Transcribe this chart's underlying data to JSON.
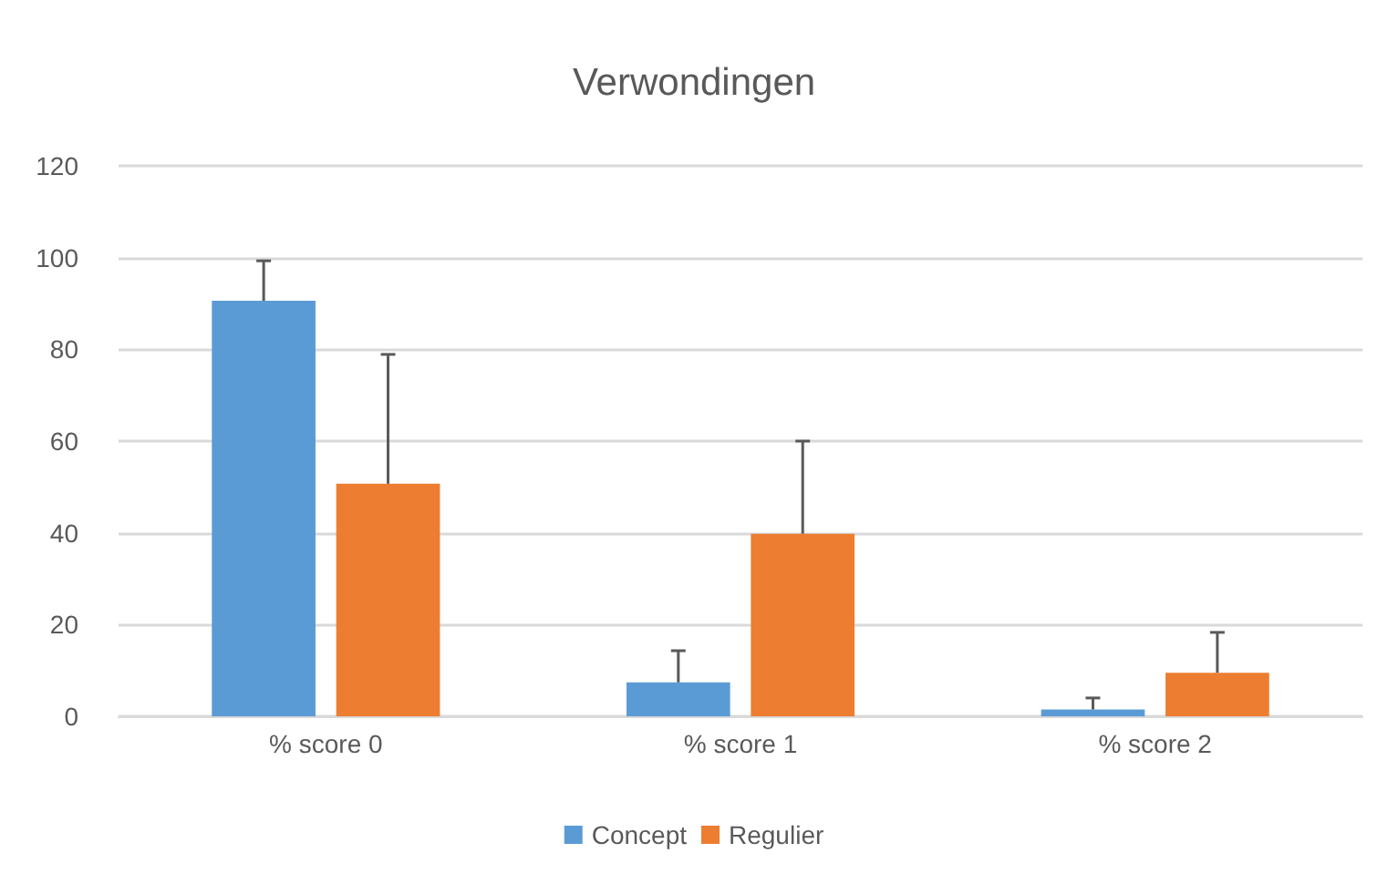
{
  "chart_data": {
    "type": "bar",
    "title": "Verwondingen",
    "categories": [
      "% score 0",
      "% score 1",
      "% score 2"
    ],
    "series": [
      {
        "name": "Concept",
        "color": "#5b9bd5",
        "values": [
          90.6,
          7.4,
          1.5
        ],
        "errors": [
          [
            90.6,
            99.3
          ],
          [
            7.4,
            14.3
          ],
          [
            1.5,
            4
          ]
        ]
      },
      {
        "name": "Regulier",
        "color": "#ed7d31",
        "values": [
          50.7,
          39.8,
          9.5
        ],
        "errors": [
          [
            50.7,
            78.9
          ],
          [
            39.8,
            60
          ],
          [
            9.5,
            18.3
          ]
        ]
      }
    ],
    "ylim": [
      0,
      120
    ],
    "yticks": [
      0,
      20,
      40,
      60,
      80,
      100,
      120
    ],
    "grid": "y",
    "legend": "bottom"
  }
}
